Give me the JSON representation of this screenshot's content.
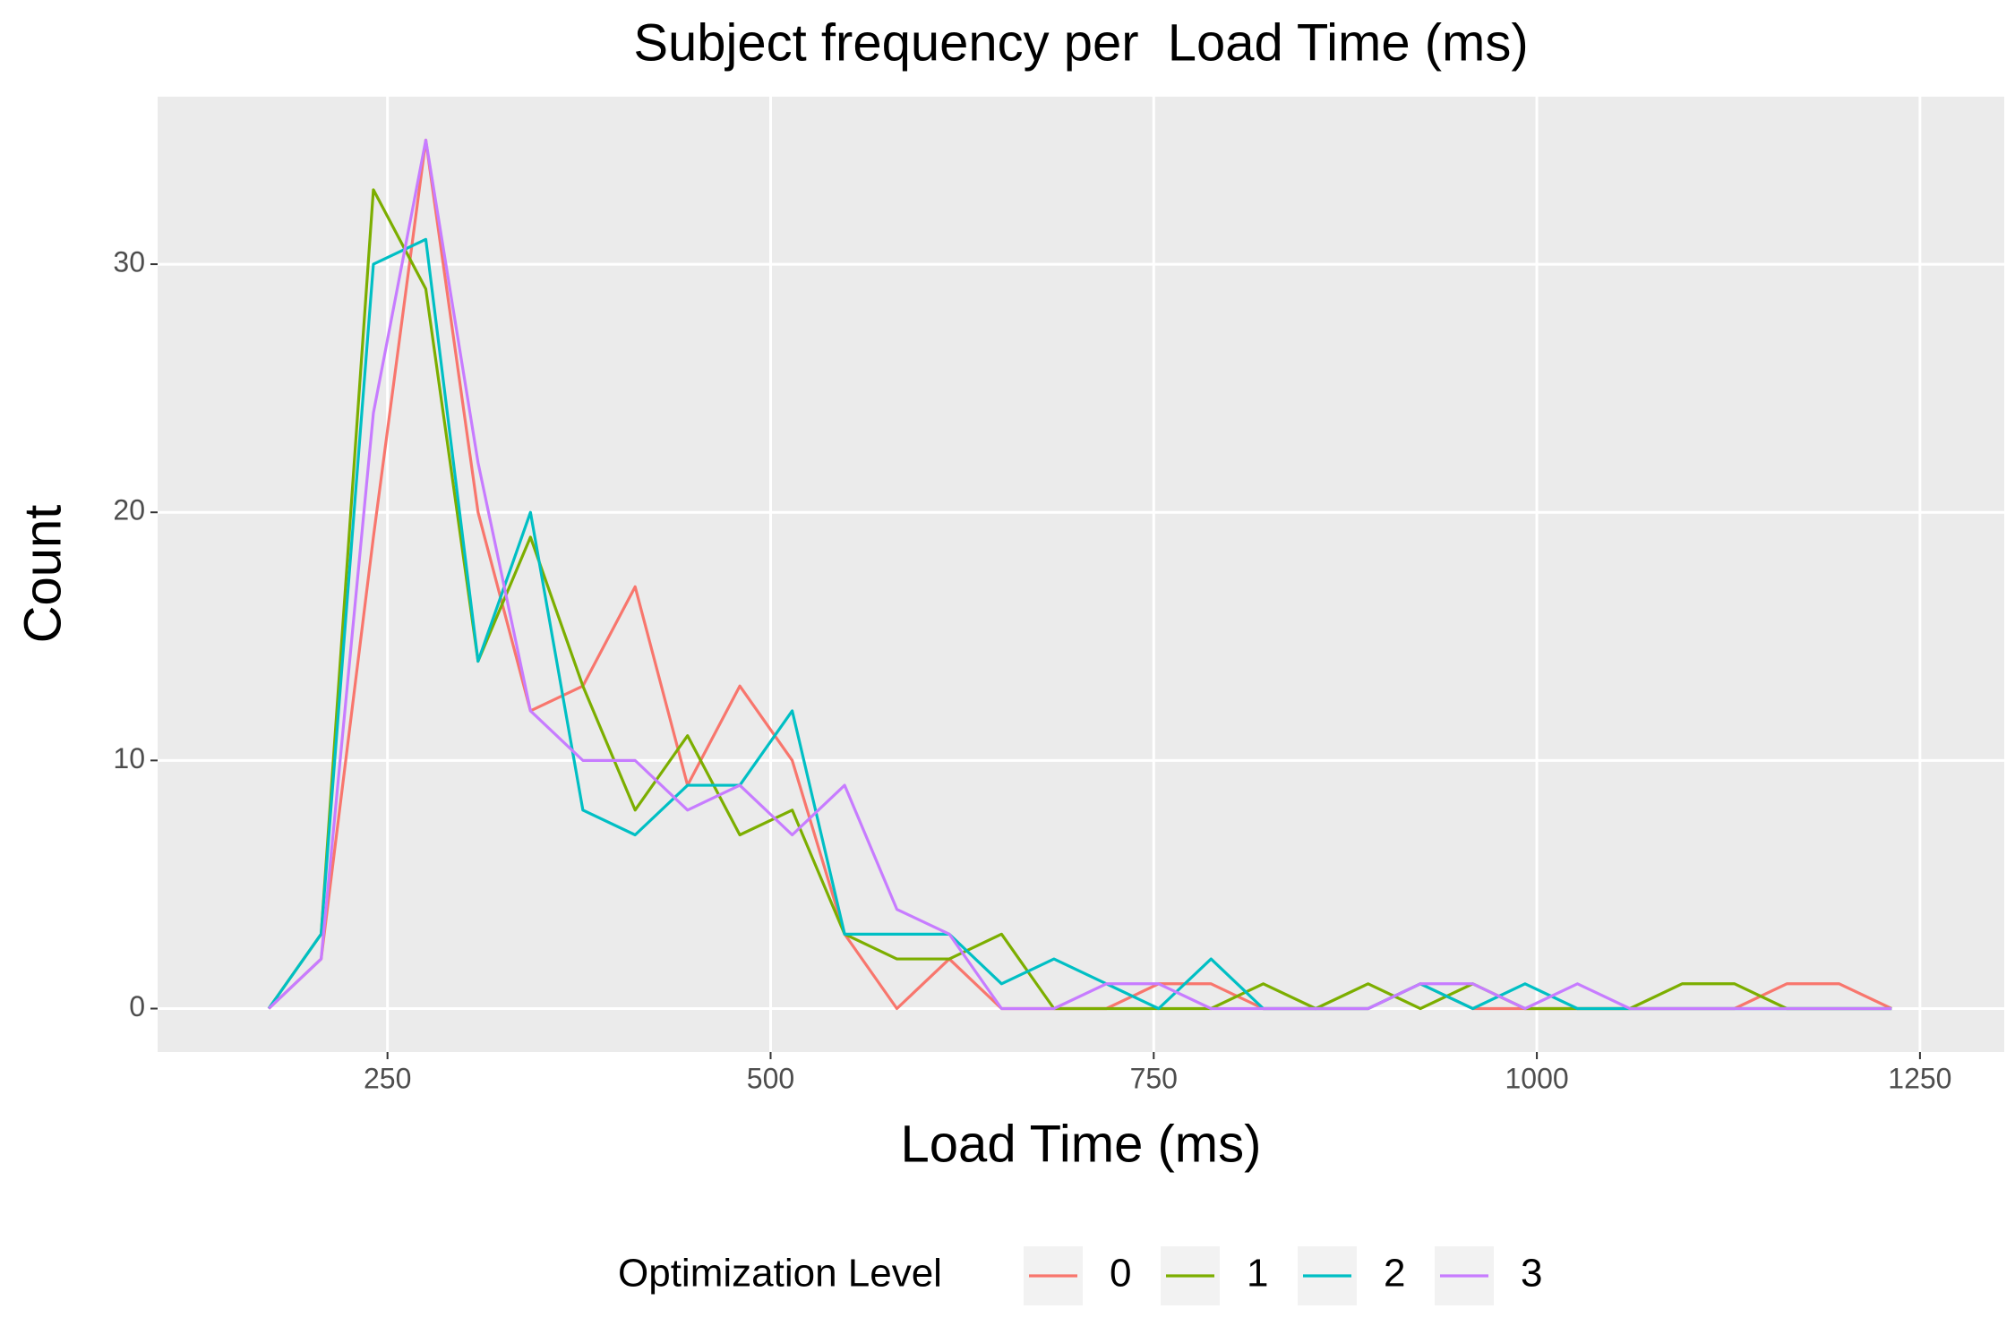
{
  "chart_data": {
    "type": "line",
    "title": "Subject frequency per  Load Time (ms)",
    "x_label": "Load Time (ms)",
    "y_label": "Count",
    "legend_title": "Optimization Level",
    "legend_position": "bottom",
    "x": [
      172.5,
      206.7,
      240.8,
      275.0,
      309.1,
      343.3,
      377.5,
      411.6,
      445.8,
      479.9,
      514.1,
      548.3,
      582.4,
      616.6,
      650.7,
      684.9,
      719.1,
      753.2,
      787.4,
      821.5,
      855.7,
      889.9,
      924.0,
      958.2,
      992.3,
      1026.5,
      1060.7,
      1094.8,
      1129.0,
      1163.1,
      1197.3,
      1231.5
    ],
    "series": [
      {
        "name": "0",
        "color": "#F8766D",
        "values": [
          0,
          2,
          19,
          35,
          20,
          12,
          13,
          17,
          9,
          13,
          10,
          3,
          0,
          2,
          0,
          0,
          0,
          1,
          1,
          0,
          0,
          0,
          1,
          0,
          0,
          0,
          0,
          0,
          0,
          1,
          1,
          0
        ]
      },
      {
        "name": "1",
        "color": "#7CAE00",
        "values": [
          0,
          3,
          33,
          29,
          14,
          19,
          13,
          8,
          11,
          7,
          8,
          3,
          2,
          2,
          3,
          0,
          0,
          0,
          0,
          1,
          0,
          1,
          0,
          1,
          0,
          0,
          0,
          1,
          1,
          0,
          0,
          0
        ]
      },
      {
        "name": "2",
        "color": "#00BFC4",
        "values": [
          0,
          3,
          30,
          31,
          14,
          20,
          8,
          7,
          9,
          9,
          12,
          3,
          3,
          3,
          1,
          2,
          1,
          0,
          2,
          0,
          0,
          0,
          1,
          0,
          1,
          0,
          0,
          0,
          0,
          0,
          0,
          0
        ]
      },
      {
        "name": "3",
        "color": "#C77CFF",
        "values": [
          0,
          2,
          24,
          35,
          22,
          12,
          10,
          10,
          8,
          9,
          7,
          9,
          4,
          3,
          0,
          0,
          1,
          1,
          0,
          0,
          0,
          0,
          1,
          1,
          0,
          1,
          0,
          0,
          0,
          0,
          0,
          0
        ]
      }
    ],
    "xlim": [
      100,
      1305
    ],
    "xticks": [
      250,
      500,
      750,
      1000,
      1250
    ],
    "ylim": [
      -1.75,
      36.75
    ],
    "yticks": [
      0,
      10,
      20,
      30
    ],
    "grid": true
  }
}
